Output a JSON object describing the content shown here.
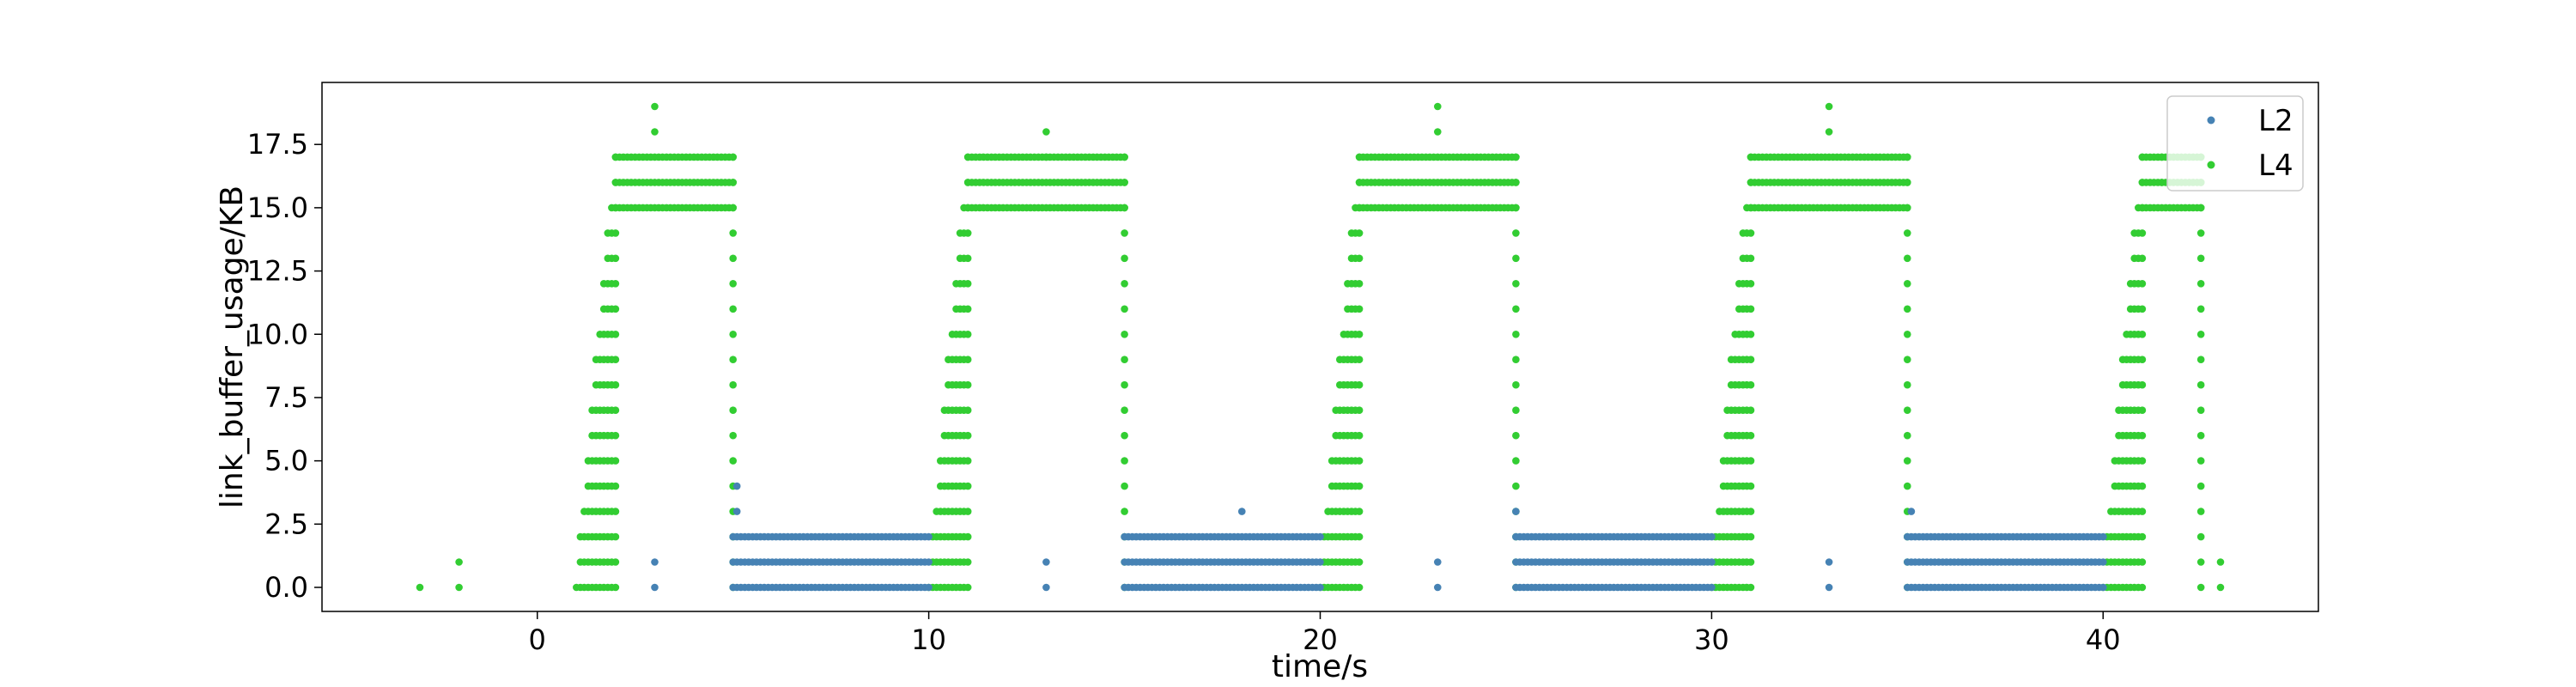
{
  "chart_data": {
    "type": "scatter",
    "title": "",
    "xlabel": "time/s",
    "ylabel": "link_buffer_usage/KB",
    "xlim": [
      -5.5,
      45.5
    ],
    "ylim": [
      -0.95,
      19.95
    ],
    "xticks": [
      0,
      10,
      20,
      30,
      40
    ],
    "xtick_labels": [
      "0",
      "10",
      "20",
      "30",
      "40"
    ],
    "yticks": [
      0.0,
      2.5,
      5.0,
      7.5,
      10.0,
      12.5,
      15.0,
      17.5
    ],
    "ytick_labels": [
      "0.0",
      "2.5",
      "5.0",
      "7.5",
      "10.0",
      "12.5",
      "15.0",
      "17.5"
    ],
    "grid": false,
    "legend_position": "top-right",
    "series": [
      {
        "name": "L2",
        "color": "#4682b4",
        "description": "Per-packet buffer samples; values 0, 1, 2 KB during each ~5-10 s window after the burst, plus isolated points",
        "segments": [
          {
            "x_start": 5.0,
            "x_end": 10.0,
            "y_values": [
              0,
              1,
              2
            ]
          },
          {
            "x_start": 15.0,
            "x_end": 20.0,
            "y_values": [
              0,
              1,
              2
            ]
          },
          {
            "x_start": 25.0,
            "x_end": 30.0,
            "y_values": [
              0,
              1,
              2
            ]
          },
          {
            "x_start": 35.0,
            "x_end": 40.0,
            "y_values": [
              0,
              1,
              2
            ]
          }
        ],
        "points": [
          {
            "x": 3.0,
            "y": 0
          },
          {
            "x": 3.0,
            "y": 1
          },
          {
            "x": 5.1,
            "y": 3
          },
          {
            "x": 5.1,
            "y": 4
          },
          {
            "x": 13.0,
            "y": 0
          },
          {
            "x": 13.0,
            "y": 1
          },
          {
            "x": 18.0,
            "y": 3
          },
          {
            "x": 23.0,
            "y": 0
          },
          {
            "x": 23.0,
            "y": 1
          },
          {
            "x": 25.0,
            "y": 3
          },
          {
            "x": 33.0,
            "y": 0
          },
          {
            "x": 33.0,
            "y": 1
          },
          {
            "x": 35.1,
            "y": 3
          }
        ]
      },
      {
        "name": "L4",
        "color": "#32cd32",
        "description": "Buffer usage ramps from 0 to ~15-19 KB around each 10 s cycle start, plateaus, then drops back",
        "cycles": [
          {
            "ramp_start": 1.0,
            "ramp_end": 2.0,
            "plateau_end": 5.0,
            "plateau_values": [
              15,
              16,
              17
            ],
            "peak": 19,
            "peak_x": 3.0
          },
          {
            "ramp_start": 10.0,
            "ramp_end": 11.0,
            "plateau_end": 15.0,
            "plateau_values": [
              15,
              16,
              17
            ],
            "peak": 18,
            "peak_x": 13.0
          },
          {
            "ramp_start": 20.0,
            "ramp_end": 21.0,
            "plateau_end": 25.0,
            "plateau_values": [
              15,
              16,
              17
            ],
            "peak": 19,
            "peak_x": 23.0
          },
          {
            "ramp_start": 30.0,
            "ramp_end": 31.0,
            "plateau_end": 35.0,
            "plateau_values": [
              15,
              16,
              17
            ],
            "peak": 19,
            "peak_x": 33.0
          },
          {
            "ramp_start": 40.0,
            "ramp_end": 41.0,
            "plateau_end": 42.5,
            "plateau_values": [
              15,
              16,
              17
            ],
            "peak": 17,
            "peak_x": 41.5
          }
        ],
        "points": [
          {
            "x": -3.0,
            "y": 0
          },
          {
            "x": -2.0,
            "y": 0
          },
          {
            "x": -2.0,
            "y": 1
          },
          {
            "x": 43.0,
            "y": 0
          },
          {
            "x": 43.0,
            "y": 1
          }
        ]
      }
    ]
  }
}
